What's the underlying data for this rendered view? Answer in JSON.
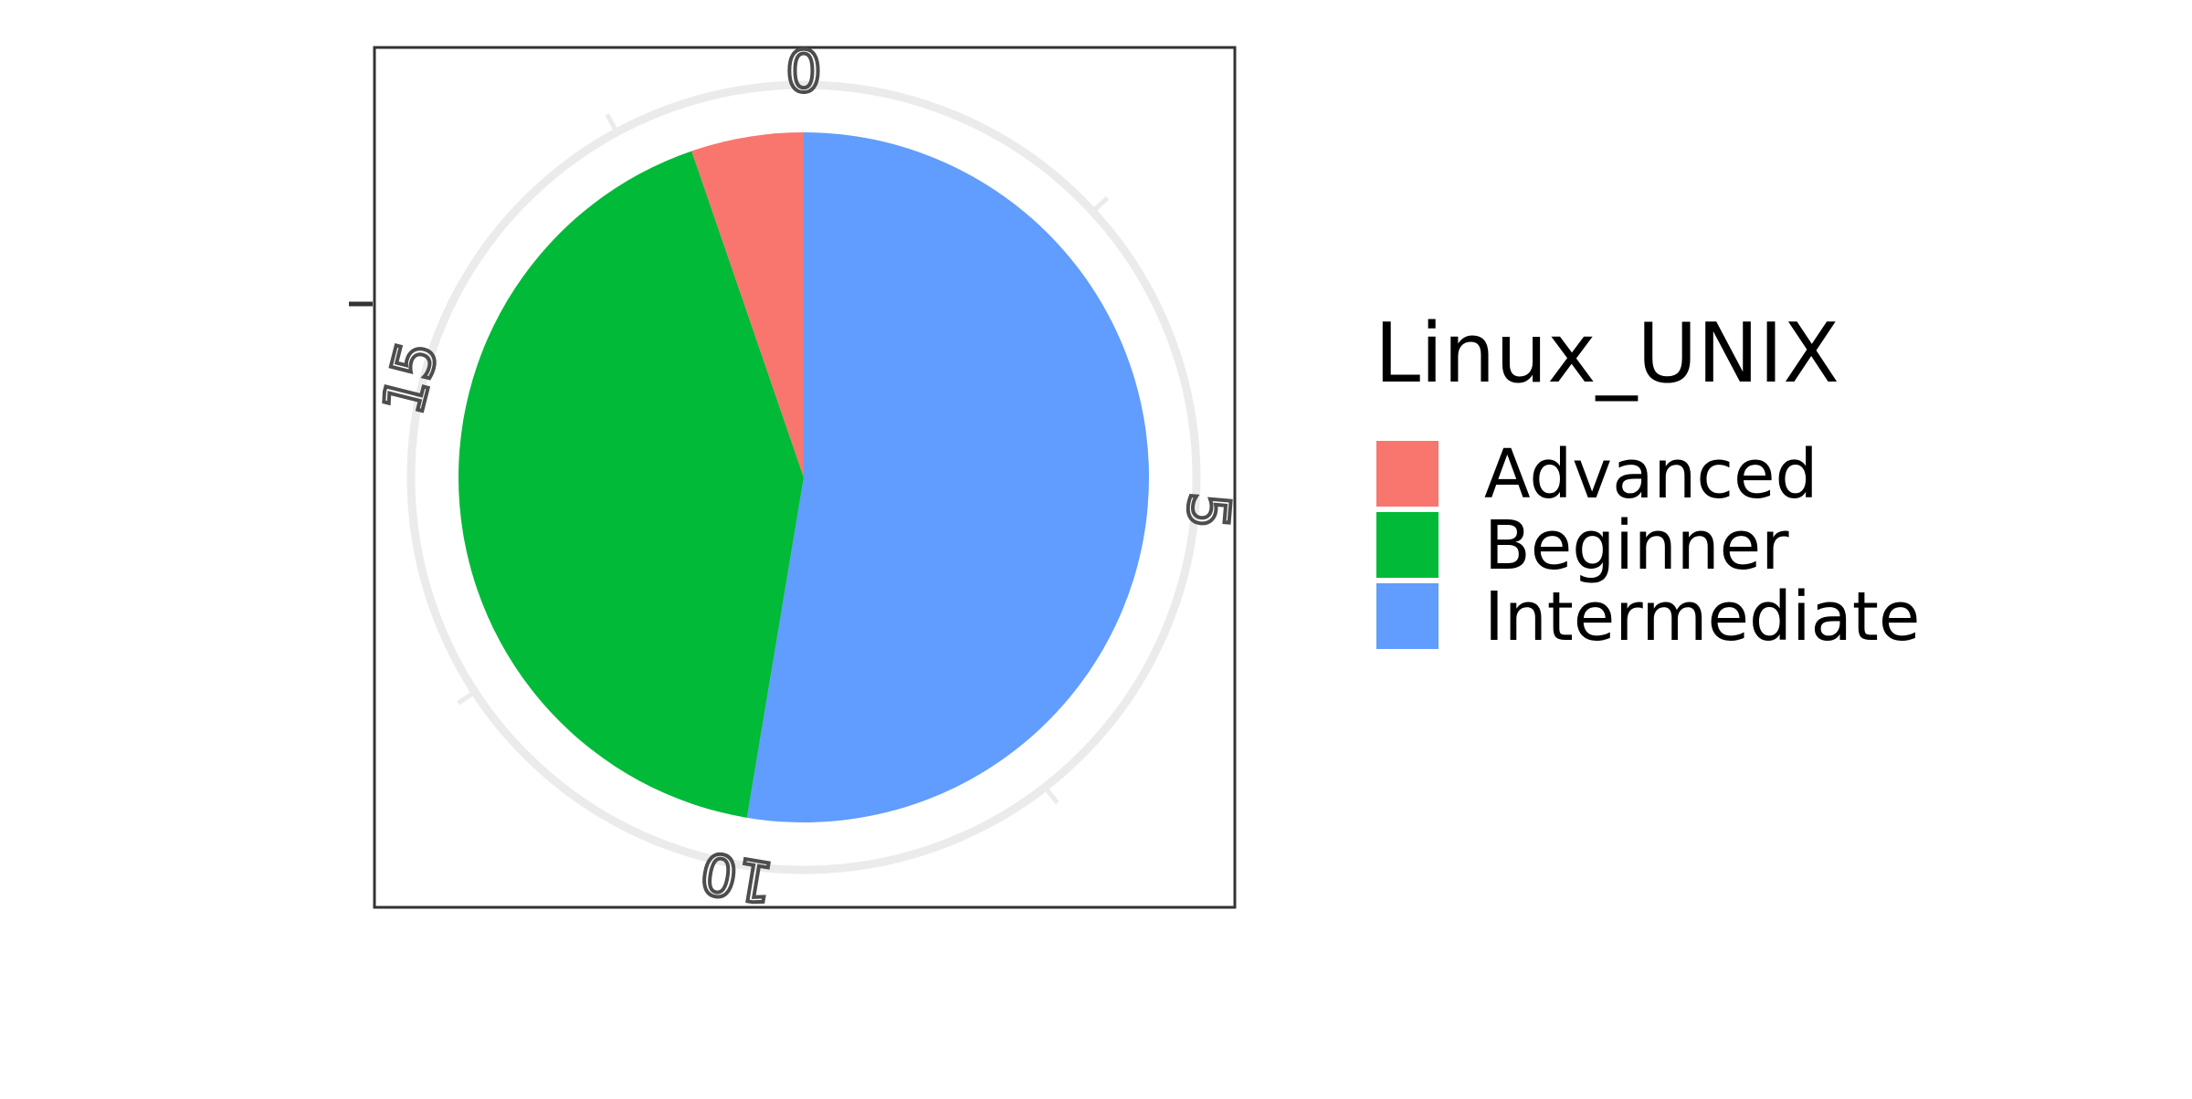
{
  "chart_data": {
    "type": "pie",
    "coord": "polar",
    "legend": {
      "title": "Linux_UNIX",
      "placement": "right"
    },
    "slices": [
      {
        "label": "Advanced",
        "value": 1,
        "color": "#F8766D"
      },
      {
        "label": "Beginner",
        "value": 8,
        "color": "#00BA38"
      },
      {
        "label": "Intermediate",
        "value": 10,
        "color": "#619CFF"
      }
    ],
    "total": 19,
    "slice_order": [
      "Intermediate",
      "Beginner",
      "Advanced"
    ],
    "angle_ticks": [
      "0",
      "5",
      "10",
      "15"
    ],
    "angle_tick_values": [
      0,
      5,
      10,
      15
    ],
    "grid": true,
    "colors": {
      "panel_border": "#333333",
      "grid": "#EBEBEB",
      "tick_text": "#4D4D4D"
    }
  }
}
